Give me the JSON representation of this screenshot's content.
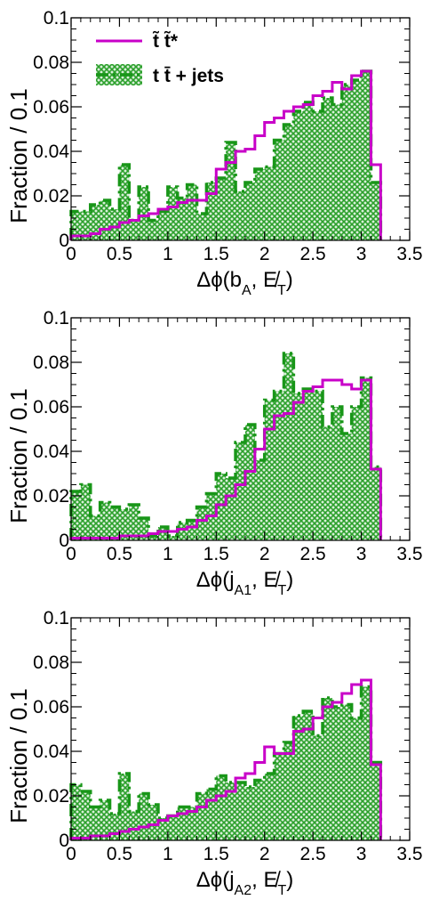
{
  "colors": {
    "signal": "#c800c8",
    "background_line": "#189618",
    "background_fill": "#2ca02c",
    "background_hatch_bg": "#d9f0d9",
    "axis": "#000000"
  },
  "legend": {
    "entries": [
      {
        "label": "t̃ t̃*",
        "style": "signal-line"
      },
      {
        "label": "t t̄ + jets",
        "style": "background-hatched"
      }
    ]
  },
  "chart_data": [
    {
      "type": "histogram",
      "xlabel": "Δϕ(b_A, E̸_T)",
      "ylabel": "Fraction / 0.1",
      "xlim": [
        0,
        3.5
      ],
      "ylim": [
        0,
        0.1
      ],
      "xticks": [
        "0",
        "0.5",
        "1",
        "1.5",
        "2",
        "2.5",
        "3",
        "3.5"
      ],
      "yticks": [
        "0",
        "0.02",
        "0.04",
        "0.06",
        "0.08",
        "0.1"
      ],
      "bin_width": 0.1,
      "x_start": 0.0,
      "legend_position": "top-left",
      "series": [
        {
          "name": "t̃ t̃*",
          "values": [
            0.002,
            0.002,
            0.003,
            0.005,
            0.006,
            0.008,
            0.009,
            0.011,
            0.012,
            0.014,
            0.015,
            0.017,
            0.018,
            0.018,
            0.021,
            0.032,
            0.035,
            0.04,
            0.041,
            0.047,
            0.053,
            0.055,
            0.058,
            0.06,
            0.061,
            0.065,
            0.067,
            0.071,
            0.068,
            0.074,
            0.076,
            0.034
          ]
        },
        {
          "name": "t t̄ + jets",
          "values": [
            0.013,
            0.013,
            0.016,
            0.018,
            0.014,
            0.034,
            0.009,
            0.024,
            0.009,
            0.013,
            0.024,
            0.019,
            0.025,
            0.012,
            0.026,
            0.028,
            0.044,
            0.022,
            0.026,
            0.032,
            0.033,
            0.045,
            0.052,
            0.058,
            0.062,
            0.058,
            0.064,
            0.061,
            0.07,
            0.072,
            0.076,
            0.026
          ]
        }
      ]
    },
    {
      "type": "histogram",
      "xlabel": "Δϕ(j_A1, E̸_T)",
      "ylabel": "Fraction / 0.1",
      "xlim": [
        0,
        3.5
      ],
      "ylim": [
        0,
        0.1
      ],
      "xticks": [
        "0",
        "0.5",
        "1",
        "1.5",
        "2",
        "2.5",
        "3",
        "3.5"
      ],
      "yticks": [
        "0",
        "0.02",
        "0.04",
        "0.06",
        "0.08",
        "0.1"
      ],
      "bin_width": 0.1,
      "x_start": 0.0,
      "series": [
        {
          "name": "t̃ t̃*",
          "values": [
            0.001,
            0.001,
            0.001,
            0.001,
            0.001,
            0.002,
            0.002,
            0.002,
            0.003,
            0.004,
            0.004,
            0.005,
            0.006,
            0.009,
            0.011,
            0.016,
            0.02,
            0.025,
            0.031,
            0.041,
            0.05,
            0.056,
            0.057,
            0.062,
            0.067,
            0.069,
            0.072,
            0.072,
            0.07,
            0.068,
            0.072,
            0.032
          ]
        },
        {
          "name": "t t̄ + jets",
          "values": [
            0.022,
            0.025,
            0.011,
            0.017,
            0.015,
            0.014,
            0.016,
            0.01,
            0.002,
            0.006,
            0.002,
            0.008,
            0.009,
            0.015,
            0.021,
            0.03,
            0.028,
            0.044,
            0.052,
            0.036,
            0.063,
            0.067,
            0.084,
            0.066,
            0.068,
            0.067,
            0.051,
            0.06,
            0.048,
            0.06,
            0.073,
            0.033
          ]
        }
      ]
    },
    {
      "type": "histogram",
      "xlabel": "Δϕ(j_A2, E̸_T)",
      "ylabel": "Fraction / 0.1",
      "xlim": [
        0,
        3.5
      ],
      "ylim": [
        0,
        0.1
      ],
      "xticks": [
        "0",
        "0.5",
        "1",
        "1.5",
        "2",
        "2.5",
        "3",
        "3.5"
      ],
      "yticks": [
        "0",
        "0.02",
        "0.04",
        "0.06",
        "0.08",
        "0.1"
      ],
      "bin_width": 0.1,
      "x_start": 0.0,
      "series": [
        {
          "name": "t̃ t̃*",
          "values": [
            0.001,
            0.001,
            0.002,
            0.002,
            0.003,
            0.004,
            0.005,
            0.006,
            0.007,
            0.009,
            0.011,
            0.012,
            0.013,
            0.015,
            0.018,
            0.02,
            0.022,
            0.028,
            0.03,
            0.035,
            0.042,
            0.039,
            0.039,
            0.049,
            0.05,
            0.055,
            0.06,
            0.062,
            0.066,
            0.07,
            0.072,
            0.034
          ]
        },
        {
          "name": "t t̄ + jets",
          "values": [
            0.025,
            0.022,
            0.015,
            0.018,
            0.012,
            0.03,
            0.013,
            0.021,
            0.016,
            0.01,
            0.011,
            0.015,
            0.015,
            0.021,
            0.023,
            0.029,
            0.026,
            0.026,
            0.024,
            0.027,
            0.03,
            0.039,
            0.044,
            0.056,
            0.058,
            0.047,
            0.064,
            0.06,
            0.061,
            0.055,
            0.069,
            0.035
          ]
        }
      ]
    }
  ]
}
